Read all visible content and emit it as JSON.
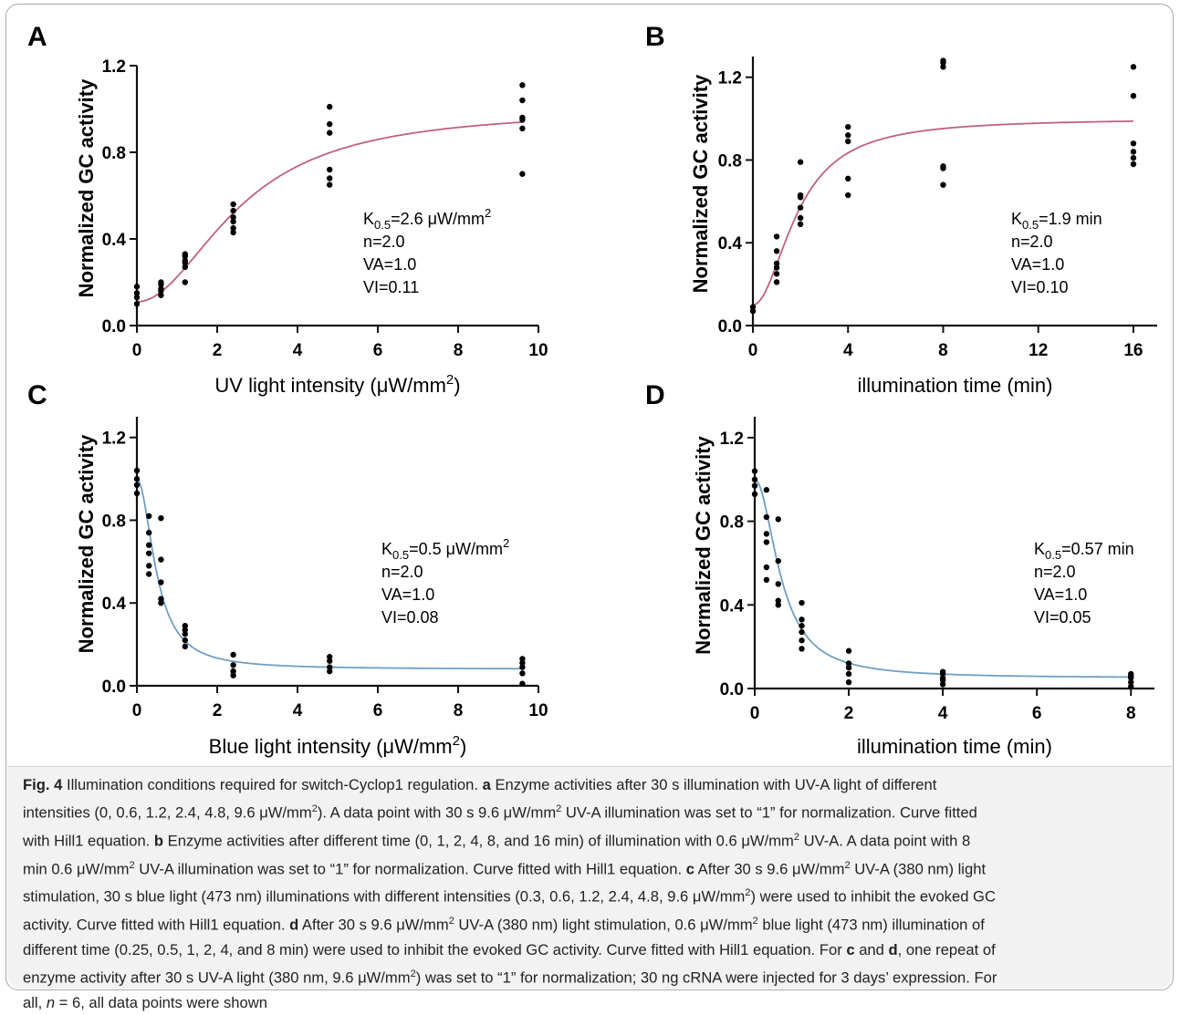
{
  "colors": {
    "fit_pink": "#c0607f",
    "fit_blue": "#6f9fc4",
    "points": "#000000",
    "axis": "#111111"
  },
  "chart_data": [
    {
      "type": "scatter",
      "panel": "A",
      "xlabel": "UV light intensity (μW/mm²)",
      "ylabel": "Normalized GC activity",
      "xlim": [
        0,
        10
      ],
      "ylim": [
        0,
        1.2
      ],
      "xticks": [
        "0",
        "2",
        "4",
        "6",
        "8",
        "10"
      ],
      "yticks": [
        "0.0",
        "0.4",
        "0.8",
        "1.2"
      ],
      "points": [
        [
          0,
          0.1
        ],
        [
          0,
          0.13
        ],
        [
          0,
          0.15
        ],
        [
          0,
          0.18
        ],
        [
          0.6,
          0.14
        ],
        [
          0.6,
          0.16
        ],
        [
          0.6,
          0.17
        ],
        [
          0.6,
          0.19
        ],
        [
          0.6,
          0.2
        ],
        [
          1.2,
          0.2
        ],
        [
          1.2,
          0.27
        ],
        [
          1.2,
          0.29
        ],
        [
          1.2,
          0.3
        ],
        [
          1.2,
          0.32
        ],
        [
          1.2,
          0.33
        ],
        [
          2.4,
          0.43
        ],
        [
          2.4,
          0.45
        ],
        [
          2.4,
          0.48
        ],
        [
          2.4,
          0.5
        ],
        [
          2.4,
          0.53
        ],
        [
          2.4,
          0.56
        ],
        [
          4.8,
          0.65
        ],
        [
          4.8,
          0.68
        ],
        [
          4.8,
          0.72
        ],
        [
          4.8,
          0.89
        ],
        [
          4.8,
          0.93
        ],
        [
          4.8,
          1.01
        ],
        [
          9.6,
          0.7
        ],
        [
          9.6,
          0.91
        ],
        [
          9.6,
          0.95
        ],
        [
          9.6,
          0.96
        ],
        [
          9.6,
          1.04
        ],
        [
          9.6,
          1.11
        ]
      ],
      "fit": {
        "model": "Hill1",
        "k": 2.6,
        "n": 2.0,
        "va": 1.0,
        "vi": 0.11,
        "direction": "up"
      },
      "annotation": {
        "k_prefix": "K",
        "k_sub": "0.5",
        "k_value": "=2.6 μW/mm",
        "k_sup": "2",
        "n": "n=2.0",
        "va": "VA=1.0",
        "vi": "VI=0.11"
      }
    },
    {
      "type": "scatter",
      "panel": "B",
      "xlabel": "illumination time (min)",
      "ylabel": "Normalized GC activity",
      "xlim": [
        0,
        17
      ],
      "ylim": [
        0,
        1.3
      ],
      "xticks": [
        "0",
        "4",
        "8",
        "12",
        "16"
      ],
      "yticks": [
        "0.0",
        "0.4",
        "0.8",
        "1.2"
      ],
      "points": [
        [
          0,
          0.07
        ],
        [
          0,
          0.09
        ],
        [
          1,
          0.21
        ],
        [
          1,
          0.25
        ],
        [
          1,
          0.28
        ],
        [
          1,
          0.3
        ],
        [
          1,
          0.36
        ],
        [
          1,
          0.43
        ],
        [
          2,
          0.49
        ],
        [
          2,
          0.52
        ],
        [
          2,
          0.57
        ],
        [
          2,
          0.62
        ],
        [
          2,
          0.63
        ],
        [
          2,
          0.79
        ],
        [
          4,
          0.63
        ],
        [
          4,
          0.71
        ],
        [
          4,
          0.89
        ],
        [
          4,
          0.92
        ],
        [
          4,
          0.96
        ],
        [
          8,
          0.68
        ],
        [
          8,
          0.76
        ],
        [
          8,
          0.77
        ],
        [
          8,
          1.25
        ],
        [
          8,
          1.27
        ],
        [
          8,
          1.28
        ],
        [
          16,
          0.78
        ],
        [
          16,
          0.81
        ],
        [
          16,
          0.84
        ],
        [
          16,
          0.88
        ],
        [
          16,
          1.11
        ],
        [
          16,
          1.25
        ]
      ],
      "fit": {
        "model": "Hill1",
        "k": 1.9,
        "n": 2.0,
        "va": 1.0,
        "vi": 0.1,
        "direction": "up"
      },
      "annotation": {
        "k_prefix": "K",
        "k_sub": "0.5",
        "k_value": "=1.9 min",
        "k_sup": "",
        "n": "n=2.0",
        "va": "VA=1.0",
        "vi": "VI=0.10"
      }
    },
    {
      "type": "scatter",
      "panel": "C",
      "xlabel": "Blue light intensity (μW/mm²)",
      "ylabel": "Normalized GC activity",
      "xlim": [
        0,
        10
      ],
      "ylim": [
        0,
        1.3
      ],
      "xticks": [
        "0",
        "2",
        "4",
        "6",
        "8",
        "10"
      ],
      "yticks": [
        "0.0",
        "0.4",
        "0.8",
        "1.2"
      ],
      "points": [
        [
          0,
          0.93
        ],
        [
          0,
          0.97
        ],
        [
          0,
          1.0
        ],
        [
          0,
          1.04
        ],
        [
          0.3,
          0.54
        ],
        [
          0.3,
          0.58
        ],
        [
          0.3,
          0.64
        ],
        [
          0.3,
          0.68
        ],
        [
          0.3,
          0.74
        ],
        [
          0.3,
          0.82
        ],
        [
          0.6,
          0.4
        ],
        [
          0.6,
          0.42
        ],
        [
          0.6,
          0.5
        ],
        [
          0.6,
          0.61
        ],
        [
          0.6,
          0.81
        ],
        [
          1.2,
          0.19
        ],
        [
          1.2,
          0.22
        ],
        [
          1.2,
          0.25
        ],
        [
          1.2,
          0.27
        ],
        [
          1.2,
          0.29
        ],
        [
          2.4,
          0.05
        ],
        [
          2.4,
          0.07
        ],
        [
          2.4,
          0.1
        ],
        [
          2.4,
          0.15
        ],
        [
          4.8,
          0.07
        ],
        [
          4.8,
          0.09
        ],
        [
          4.8,
          0.12
        ],
        [
          4.8,
          0.14
        ],
        [
          9.6,
          0.01
        ],
        [
          9.6,
          0.06
        ],
        [
          9.6,
          0.09
        ],
        [
          9.6,
          0.11
        ],
        [
          9.6,
          0.13
        ]
      ],
      "fit": {
        "model": "Hill1",
        "k": 0.5,
        "n": 2.0,
        "va": 1.0,
        "vi": 0.08,
        "direction": "down"
      },
      "annotation": {
        "k_prefix": "K",
        "k_sub": "0.5",
        "k_value": "=0.5 μW/mm",
        "k_sup": "2",
        "n": "n=2.0",
        "va": "VA=1.0",
        "vi": "VI=0.08"
      }
    },
    {
      "type": "scatter",
      "panel": "D",
      "xlabel": "illumination time (min)",
      "ylabel": "Normalized GC activity",
      "xlim": [
        0,
        8.5
      ],
      "ylim": [
        0,
        1.3
      ],
      "xticks": [
        "0",
        "2",
        "4",
        "6",
        "8"
      ],
      "yticks": [
        "0.0",
        "0.4",
        "0.8",
        "1.2"
      ],
      "points": [
        [
          0,
          0.93
        ],
        [
          0,
          0.97
        ],
        [
          0,
          1.0
        ],
        [
          0,
          1.04
        ],
        [
          0.25,
          0.52
        ],
        [
          0.25,
          0.58
        ],
        [
          0.25,
          0.7
        ],
        [
          0.25,
          0.74
        ],
        [
          0.25,
          0.82
        ],
        [
          0.25,
          0.95
        ],
        [
          0.5,
          0.4
        ],
        [
          0.5,
          0.42
        ],
        [
          0.5,
          0.5
        ],
        [
          0.5,
          0.61
        ],
        [
          0.5,
          0.81
        ],
        [
          1,
          0.19
        ],
        [
          1,
          0.23
        ],
        [
          1,
          0.27
        ],
        [
          1,
          0.3
        ],
        [
          1,
          0.33
        ],
        [
          1,
          0.41
        ],
        [
          2,
          0.03
        ],
        [
          2,
          0.07
        ],
        [
          2,
          0.1
        ],
        [
          2,
          0.12
        ],
        [
          2,
          0.18
        ],
        [
          4,
          0.02
        ],
        [
          4,
          0.04
        ],
        [
          4,
          0.05
        ],
        [
          4,
          0.07
        ],
        [
          4,
          0.08
        ],
        [
          8,
          0.01
        ],
        [
          8,
          0.03
        ],
        [
          8,
          0.05
        ],
        [
          8,
          0.06
        ],
        [
          8,
          0.07
        ]
      ],
      "fit": {
        "model": "Hill1",
        "k": 0.57,
        "n": 2.0,
        "va": 1.0,
        "vi": 0.05,
        "direction": "down"
      },
      "annotation": {
        "k_prefix": "K",
        "k_sub": "0.5",
        "k_value": "=0.57 min",
        "k_sup": "",
        "n": "n=2.0",
        "va": "VA=1.0",
        "vi": "VI=0.05"
      }
    }
  ],
  "caption": {
    "lines": [
      [
        {
          "t": "Fig. 4",
          "b": true
        },
        {
          "t": " Illumination conditions required for switch-Cyclop1 regulation. "
        },
        {
          "t": "a",
          "b": true
        },
        {
          "t": " Enzyme activities after 30 s illumination with UV-A light of different"
        }
      ],
      [
        {
          "t": "intensities (0, 0.6, 1.2, 2.4, 4.8, 9.6 μW/mm"
        },
        {
          "t": "2",
          "sup": true
        },
        {
          "t": "). A data point with 30 s 9.6 μW/mm"
        },
        {
          "t": "2",
          "sup": true
        },
        {
          "t": " UV-A illumination was set to “1” for normalization. Curve fitted"
        }
      ],
      [
        {
          "t": "with Hill1 equation. "
        },
        {
          "t": "b",
          "b": true
        },
        {
          "t": " Enzyme activities after different time (0, 1, 2, 4, 8, and 16 min) of illumination with 0.6 μW/mm"
        },
        {
          "t": "2",
          "sup": true
        },
        {
          "t": " UV-A. A data point with 8"
        }
      ],
      [
        {
          "t": "min 0.6 μW/mm"
        },
        {
          "t": "2",
          "sup": true
        },
        {
          "t": " UV-A illumination was set to “1” for normalization. Curve fitted with Hill1 equation. "
        },
        {
          "t": "c",
          "b": true
        },
        {
          "t": " After 30 s 9.6 μW/mm"
        },
        {
          "t": "2",
          "sup": true
        },
        {
          "t": " UV-A (380 nm) light"
        }
      ],
      [
        {
          "t": "stimulation, 30 s blue light (473 nm) illuminations with different intensities (0.3, 0.6, 1.2, 2.4, 4.8, 9.6 μW/mm"
        },
        {
          "t": "2",
          "sup": true
        },
        {
          "t": ") were used to inhibit the evoked GC"
        }
      ],
      [
        {
          "t": "activity. Curve fitted with Hill1 equation. "
        },
        {
          "t": "d",
          "b": true
        },
        {
          "t": " After 30 s 9.6 μW/mm"
        },
        {
          "t": "2",
          "sup": true
        },
        {
          "t": " UV-A (380 nm) light stimulation, 0.6 μW/mm"
        },
        {
          "t": "2",
          "sup": true
        },
        {
          "t": " blue light (473 nm) illumination of"
        }
      ],
      [
        {
          "t": "different time (0.25, 0.5, 1, 2, 4, and 8 min) were used to inhibit the evoked GC activity. Curve fitted with Hill1 equation. For "
        },
        {
          "t": "c",
          "b": true
        },
        {
          "t": " and "
        },
        {
          "t": "d",
          "b": true
        },
        {
          "t": ", one repeat of"
        }
      ],
      [
        {
          "t": "enzyme activity after 30 s UV-A light (380 nm, 9.6 μW/mm"
        },
        {
          "t": "2",
          "sup": true
        },
        {
          "t": ") was set to “1” for normalization; 30 ng cRNA were injected for 3 days’ expression. For"
        }
      ],
      [
        {
          "t": "all, "
        },
        {
          "t": "n",
          "i": true
        },
        {
          "t": " = 6, all data points were shown"
        }
      ]
    ]
  }
}
